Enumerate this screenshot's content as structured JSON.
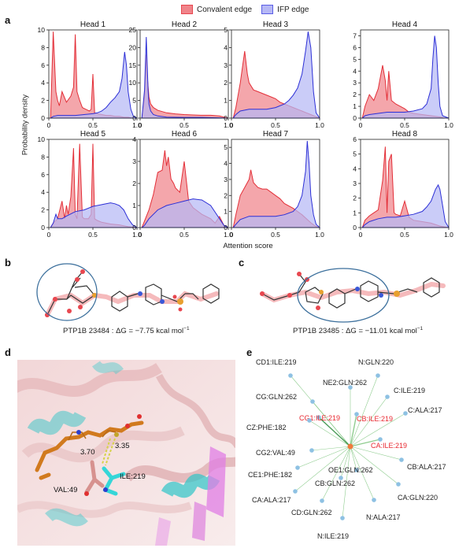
{
  "panel_labels": {
    "a": "a",
    "b": "b",
    "c": "c",
    "d": "d",
    "e": "e"
  },
  "legend": {
    "items": [
      {
        "label": "Convalent edge",
        "color": "#e8474f"
      },
      {
        "label": "IFP edge",
        "color": "#5a5ee6"
      }
    ]
  },
  "axis_labels": {
    "y": "Probability density",
    "x": "Attention score"
  },
  "chart_data": [
    {
      "type": "area",
      "title": "Head 1",
      "ylim": [
        0,
        10
      ],
      "yticks": [
        "0",
        "2",
        "4",
        "6",
        "8",
        "10"
      ],
      "xticks": [
        "0",
        "0.5",
        "1.0"
      ],
      "series": [
        {
          "name": "Convalent edge",
          "x": [
            0.02,
            0.05,
            0.08,
            0.1,
            0.12,
            0.15,
            0.2,
            0.25,
            0.28,
            0.3,
            0.32,
            0.35,
            0.38,
            0.42,
            0.46,
            0.48,
            0.5,
            0.52,
            0.55,
            0.6,
            0.65,
            0.7,
            0.75,
            0.8,
            0.85,
            0.9,
            0.95,
            1.0
          ],
          "y": [
            0,
            9.8,
            3,
            2,
            1.4,
            3,
            1.8,
            2.5,
            3.5,
            9.5,
            3,
            2,
            1.2,
            1,
            0.8,
            1,
            5,
            0.6,
            0.5,
            0.4,
            0.3,
            0.3,
            0.2,
            0.2,
            0.1,
            0.1,
            0,
            0
          ]
        },
        {
          "name": "IFP edge",
          "x": [
            0.02,
            0.05,
            0.1,
            0.2,
            0.3,
            0.4,
            0.5,
            0.55,
            0.6,
            0.65,
            0.7,
            0.75,
            0.8,
            0.83,
            0.86,
            0.88,
            0.9,
            0.93,
            0.96,
            1.0
          ],
          "y": [
            0,
            0.2,
            0.3,
            0.3,
            0.3,
            0.4,
            0.5,
            0.6,
            0.8,
            1.2,
            1.8,
            2.3,
            3,
            4.5,
            7.5,
            6,
            3,
            1,
            0.2,
            0
          ]
        }
      ]
    },
    {
      "type": "area",
      "title": "Head 2",
      "ylim": [
        0,
        25
      ],
      "yticks": [
        "0",
        "5",
        "10",
        "15",
        "20",
        "25"
      ],
      "xticks": [
        "0",
        "0.5",
        "1.0"
      ],
      "series": [
        {
          "name": "Convalent edge",
          "x": [
            0.02,
            0.05,
            0.07,
            0.08,
            0.1,
            0.12,
            0.15,
            0.2,
            0.3,
            0.4,
            0.5,
            0.6,
            0.7,
            0.8,
            0.9,
            0.95,
            1.0
          ],
          "y": [
            0,
            6,
            18,
            12,
            6,
            4,
            3,
            2.2,
            1.5,
            1.2,
            1,
            0.9,
            0.8,
            0.8,
            0.6,
            0.3,
            0
          ]
        },
        {
          "name": "IFP edge",
          "x": [
            0.02,
            0.05,
            0.07,
            0.08,
            0.09,
            0.1,
            0.12,
            0.15,
            0.2,
            0.3,
            0.5,
            0.7,
            0.9,
            1.0
          ],
          "y": [
            0,
            8,
            23,
            15,
            8,
            4,
            2,
            1,
            0.6,
            0.3,
            0.2,
            0.2,
            0.1,
            0
          ]
        }
      ]
    },
    {
      "type": "area",
      "title": "Head 3",
      "ylim": [
        0,
        5
      ],
      "yticks": [
        "0",
        "1",
        "2",
        "3",
        "4",
        "5"
      ],
      "xticks": [
        "0",
        "0.5",
        "1.0"
      ],
      "series": [
        {
          "name": "Convalent edge",
          "x": [
            0.02,
            0.05,
            0.1,
            0.15,
            0.18,
            0.2,
            0.25,
            0.3,
            0.35,
            0.4,
            0.45,
            0.5,
            0.55,
            0.6,
            0.65,
            0.7,
            0.75,
            0.8,
            0.85,
            0.9,
            0.95,
            1.0
          ],
          "y": [
            0,
            0.6,
            2,
            3.8,
            2.5,
            2,
            1.6,
            1.5,
            1.4,
            1.3,
            1.2,
            1.1,
            0.9,
            0.8,
            0.7,
            0.6,
            0.5,
            0.4,
            0.3,
            0.2,
            0.1,
            0
          ]
        },
        {
          "name": "IFP edge",
          "x": [
            0.02,
            0.05,
            0.1,
            0.2,
            0.3,
            0.4,
            0.5,
            0.6,
            0.65,
            0.7,
            0.75,
            0.8,
            0.84,
            0.87,
            0.9,
            0.93,
            0.96,
            1.0
          ],
          "y": [
            0,
            0.2,
            0.4,
            0.5,
            0.5,
            0.5,
            0.6,
            0.8,
            1,
            1.3,
            1.7,
            2.5,
            3.8,
            4.9,
            4,
            1.5,
            0.3,
            0
          ]
        }
      ]
    },
    {
      "type": "area",
      "title": "Head 4",
      "ylim": [
        0,
        7.5
      ],
      "yticks": [
        "0",
        "1",
        "2",
        "3",
        "4",
        "5",
        "6",
        "7"
      ],
      "xticks": [
        "0",
        "0.5",
        "1.0"
      ],
      "series": [
        {
          "name": "Convalent edge",
          "x": [
            0.02,
            0.05,
            0.1,
            0.15,
            0.2,
            0.25,
            0.28,
            0.3,
            0.32,
            0.35,
            0.4,
            0.45,
            0.5,
            0.55,
            0.6,
            0.7,
            0.8,
            0.9,
            0.95,
            1.0
          ],
          "y": [
            0,
            1,
            2,
            1.5,
            2.5,
            4.5,
            3.2,
            1.5,
            4,
            1.5,
            1.2,
            1,
            0.8,
            0.5,
            0.4,
            0.3,
            0.2,
            0.1,
            0,
            0
          ]
        },
        {
          "name": "IFP edge",
          "x": [
            0.02,
            0.05,
            0.1,
            0.2,
            0.3,
            0.4,
            0.5,
            0.6,
            0.7,
            0.75,
            0.8,
            0.82,
            0.84,
            0.86,
            0.88,
            0.9,
            0.93,
            1.0
          ],
          "y": [
            0,
            0.2,
            0.3,
            0.4,
            0.5,
            0.5,
            0.5,
            0.6,
            0.8,
            1.2,
            2.5,
            5,
            7,
            6,
            3,
            1,
            0.2,
            0
          ]
        }
      ]
    },
    {
      "type": "area",
      "title": "Head 5",
      "ylim": [
        0,
        10
      ],
      "yticks": [
        "0",
        "2",
        "4",
        "6",
        "8",
        "10"
      ],
      "xticks": [
        "0",
        "0.5",
        "1.0"
      ],
      "series": [
        {
          "name": "Convalent edge",
          "x": [
            0.02,
            0.05,
            0.1,
            0.15,
            0.18,
            0.2,
            0.22,
            0.25,
            0.28,
            0.3,
            0.32,
            0.35,
            0.38,
            0.4,
            0.45,
            0.48,
            0.5,
            0.52,
            0.55,
            0.6,
            0.7,
            0.8,
            0.9,
            1.0
          ],
          "y": [
            0,
            0.5,
            1,
            3,
            1,
            2.5,
            1.5,
            3.5,
            9,
            1.5,
            1,
            9.5,
            1.2,
            1,
            1,
            1.5,
            9.5,
            1,
            0.8,
            0.6,
            0.4,
            0.3,
            0.1,
            0
          ]
        },
        {
          "name": "IFP edge",
          "x": [
            0.02,
            0.05,
            0.08,
            0.1,
            0.15,
            0.2,
            0.3,
            0.4,
            0.5,
            0.6,
            0.7,
            0.75,
            0.8,
            0.85,
            0.9,
            0.95,
            1.0
          ],
          "y": [
            0,
            0.5,
            1.5,
            1,
            1,
            1.3,
            1.8,
            2,
            2.4,
            2.6,
            2.8,
            2.7,
            2.5,
            2,
            1,
            0.3,
            0
          ]
        }
      ]
    },
    {
      "type": "area",
      "title": "Head 6",
      "ylim": [
        0,
        4
      ],
      "yticks": [
        "0",
        "1",
        "2",
        "3",
        "4"
      ],
      "xticks": [
        "0",
        "0.5",
        "1.0"
      ],
      "series": [
        {
          "name": "Convalent edge",
          "x": [
            0.02,
            0.05,
            0.1,
            0.15,
            0.2,
            0.25,
            0.28,
            0.3,
            0.32,
            0.35,
            0.38,
            0.4,
            0.45,
            0.5,
            0.55,
            0.6,
            0.7,
            0.8,
            0.85,
            0.9,
            0.95,
            1.0
          ],
          "y": [
            0,
            0.3,
            0.8,
            1.5,
            2.5,
            2.6,
            3.5,
            2.8,
            3.2,
            2.2,
            2,
            1.8,
            1.6,
            3,
            1.2,
            0.9,
            0.6,
            0.4,
            0.2,
            0.5,
            0.1,
            0
          ]
        },
        {
          "name": "IFP edge",
          "x": [
            0.02,
            0.05,
            0.1,
            0.2,
            0.3,
            0.4,
            0.5,
            0.6,
            0.7,
            0.8,
            0.85,
            0.9,
            0.95,
            1.0
          ],
          "y": [
            0,
            0.1,
            0.4,
            0.8,
            1,
            1.1,
            1.2,
            1.3,
            1.25,
            1,
            0.7,
            0.4,
            0.1,
            0
          ]
        }
      ]
    },
    {
      "type": "area",
      "title": "Head 7",
      "ylim": [
        0,
        5.5
      ],
      "yticks": [
        "0",
        "1",
        "2",
        "3",
        "4",
        "5"
      ],
      "xticks": [
        "0",
        "0.5",
        "1.0"
      ],
      "series": [
        {
          "name": "Convalent edge",
          "x": [
            0.02,
            0.05,
            0.1,
            0.15,
            0.2,
            0.22,
            0.25,
            0.3,
            0.35,
            0.4,
            0.45,
            0.5,
            0.55,
            0.6,
            0.7,
            0.8,
            0.9,
            0.95,
            1.0
          ],
          "y": [
            0,
            0.8,
            2,
            2.5,
            3,
            3.6,
            2.8,
            2.5,
            2.4,
            2.4,
            2.2,
            2,
            1.8,
            1.5,
            1.2,
            0.8,
            0.3,
            0.1,
            0
          ]
        },
        {
          "name": "IFP edge",
          "x": [
            0.02,
            0.05,
            0.1,
            0.2,
            0.3,
            0.4,
            0.5,
            0.6,
            0.7,
            0.75,
            0.8,
            0.84,
            0.86,
            0.88,
            0.9,
            0.93,
            0.96,
            1.0
          ],
          "y": [
            0,
            0.2,
            0.5,
            0.7,
            0.7,
            0.7,
            0.7,
            0.8,
            1,
            1.3,
            2,
            3.5,
            5.4,
            4,
            2,
            0.8,
            0.2,
            0
          ]
        }
      ]
    },
    {
      "type": "area",
      "title": "Head 8",
      "ylim": [
        0,
        6
      ],
      "yticks": [
        "0",
        "1",
        "2",
        "3",
        "4",
        "5",
        "6"
      ],
      "xticks": [
        "0",
        "0.5",
        "1.0"
      ],
      "series": [
        {
          "name": "Convalent edge",
          "x": [
            0.02,
            0.05,
            0.1,
            0.15,
            0.2,
            0.25,
            0.28,
            0.3,
            0.32,
            0.35,
            0.38,
            0.4,
            0.45,
            0.5,
            0.55,
            0.6,
            0.7,
            0.8,
            0.9,
            1.0
          ],
          "y": [
            0,
            0.5,
            0.8,
            1,
            1.2,
            3.2,
            5.5,
            1,
            4.5,
            5,
            1,
            0.9,
            0.8,
            1.8,
            0.7,
            0.5,
            0.4,
            0.3,
            0.1,
            0
          ]
        },
        {
          "name": "IFP edge",
          "x": [
            0.02,
            0.05,
            0.1,
            0.2,
            0.3,
            0.4,
            0.5,
            0.6,
            0.7,
            0.75,
            0.8,
            0.85,
            0.88,
            0.9,
            0.93,
            0.96,
            1.0
          ],
          "y": [
            0,
            0.2,
            0.4,
            0.6,
            0.7,
            0.7,
            0.8,
            0.9,
            1.1,
            1.4,
            1.8,
            2.6,
            2.9,
            2.6,
            1.5,
            0.4,
            0
          ]
        }
      ]
    }
  ],
  "panel_b": {
    "caption": "PTP1B 23484 : ΔG = −7.75 kcal mol",
    "caption_sup": "−1"
  },
  "panel_c": {
    "caption": "PTP1B 23485 : ΔG = −11.01 kcal mol",
    "caption_sup": "−1"
  },
  "panel_d": {
    "labels": {
      "dist1": "3.70",
      "dist2": "3.35",
      "res1": "ILE:219",
      "res2": "VAL:49"
    }
  },
  "network": {
    "center_color": "#f07a3c",
    "edge_color": "#7cc47c",
    "node_color": "#8ec1e3",
    "highlight_color": "#e8272f",
    "nodes": [
      {
        "label": "CD1:ILE:219",
        "highlight": false
      },
      {
        "label": "N:GLN:220",
        "highlight": false
      },
      {
        "label": "NE2:GLN:262",
        "highlight": false
      },
      {
        "label": "C:ILE:219",
        "highlight": false
      },
      {
        "label": "CG:GLN:262",
        "highlight": false
      },
      {
        "label": "CG1:ILE:219",
        "highlight": true
      },
      {
        "label": "CB:ILE:219",
        "highlight": true
      },
      {
        "label": "C:ALA:217",
        "highlight": false
      },
      {
        "label": "CZ:PHE:182",
        "highlight": false
      },
      {
        "label": "CA:ILE:219",
        "highlight": true
      },
      {
        "label": "CG2:VAL:49",
        "highlight": false
      },
      {
        "label": "OE1:GLN:262",
        "highlight": false
      },
      {
        "label": "CB:ALA:217",
        "highlight": false
      },
      {
        "label": "CE1:PHE:182",
        "highlight": false
      },
      {
        "label": "CB:GLN:262",
        "highlight": false
      },
      {
        "label": "CA:ALA:217",
        "highlight": false
      },
      {
        "label": "CA:GLN:220",
        "highlight": false
      },
      {
        "label": "CD:GLN:262",
        "highlight": false
      },
      {
        "label": "N:ALA:217",
        "highlight": false
      },
      {
        "label": "N:ILE:219",
        "highlight": false
      }
    ]
  }
}
